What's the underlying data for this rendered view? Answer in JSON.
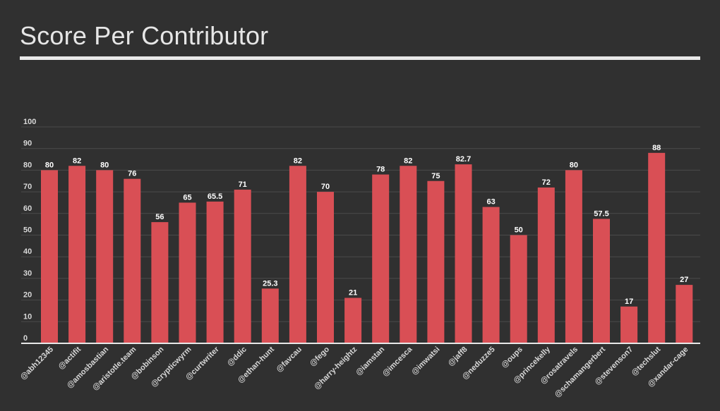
{
  "page": {
    "title": "Score Per Contributor"
  },
  "colors": {
    "background": "#303030",
    "bar": "#d94f55",
    "title": "#e6e6e6",
    "rule": "#e8e8e8",
    "grid": "#4a4a4a",
    "text": "#d8d8d8",
    "value_text": "#ffffff"
  },
  "chart_data": {
    "type": "bar",
    "title": "Score Per Contributor",
    "xlabel": "",
    "ylabel": "",
    "ylim": [
      0,
      100
    ],
    "yticks": [
      0,
      10,
      20,
      30,
      40,
      50,
      60,
      70,
      80,
      90,
      100
    ],
    "grid": true,
    "legend": "none",
    "categories": [
      "@abh12345",
      "@actifit",
      "@amosbastian",
      "@aristotle.team",
      "@bobinson",
      "@crypticwyrm",
      "@curtwriter",
      "@ddic",
      "@ethan-hunt",
      "@favcau",
      "@fego",
      "@harry-heightz",
      "@iamstan",
      "@imcesca",
      "@imwatsi",
      "@jaff8",
      "@neduzze5",
      "@oups",
      "@princekelly",
      "@rosatravels",
      "@schamangerbert",
      "@stevenson7",
      "@techslut",
      "@xandar-cage"
    ],
    "values": [
      80,
      82,
      80,
      76,
      56,
      65,
      65.5,
      71,
      25.3,
      82,
      70,
      21,
      78,
      82,
      75,
      82.7,
      63,
      50,
      72,
      80,
      57.5,
      17,
      88,
      27
    ],
    "value_labels": [
      "80",
      "82",
      "80",
      "76",
      "56",
      "65",
      "65.5",
      "71",
      "25.3",
      "82",
      "70",
      "21",
      "78",
      "82",
      "75",
      "82.7",
      "63",
      "50",
      "72",
      "80",
      "57.5",
      "17",
      "88",
      "27"
    ]
  }
}
